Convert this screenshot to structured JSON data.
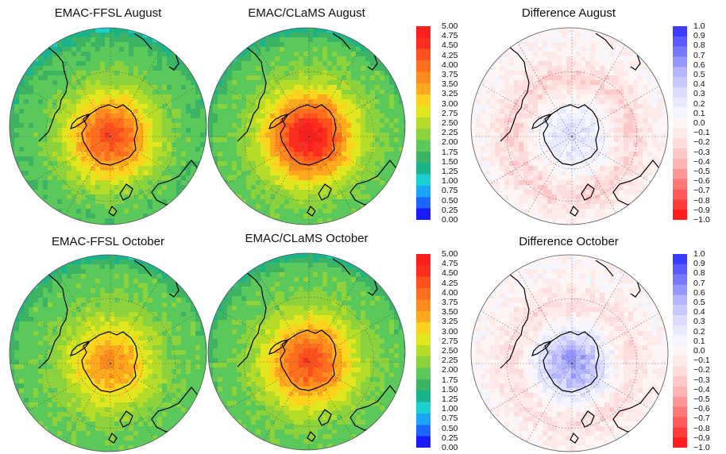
{
  "panels": [
    {
      "title": "EMAC-FFSL August",
      "kind": "ozone",
      "peak": 4.3,
      "rim": 1.8,
      "month": "aug"
    },
    {
      "title": "EMAC/CLaMS August",
      "kind": "ozone",
      "peak": 4.9,
      "rim": 1.9,
      "month": "aug"
    },
    {
      "title": "Difference August",
      "kind": "diff",
      "center": 0.25,
      "ring": -0.25,
      "month": "aug"
    },
    {
      "title": "EMAC-FFSL October",
      "kind": "ozone",
      "peak": 3.6,
      "rim": 1.9,
      "month": "oct"
    },
    {
      "title": "EMAC/CLaMS October",
      "kind": "ozone",
      "peak": 4.3,
      "rim": 1.9,
      "month": "oct"
    },
    {
      "title": "Difference October",
      "kind": "diff",
      "center": 0.6,
      "ring": -0.2,
      "month": "oct"
    }
  ],
  "colorbars": {
    "ozone": {
      "ticks": [
        "5.00",
        "4.75",
        "4.50",
        "4.25",
        "4.00",
        "3.75",
        "3.50",
        "3.25",
        "3.00",
        "2.75",
        "2.50",
        "2.25",
        "2.00",
        "1.75",
        "1.50",
        "1.25",
        "1.00",
        "0.75",
        "0.50",
        "0.25",
        "0.00"
      ],
      "min": 0,
      "max": 5,
      "colors": [
        "#1a1aff",
        "#1a66ff",
        "#1aa3ff",
        "#1ad0d0",
        "#1ab48c",
        "#3cb464",
        "#5ac85a",
        "#8cd23c",
        "#b4dc28",
        "#e1e61e",
        "#ffd21e",
        "#ffaa1e",
        "#ff8c1e",
        "#ff6e1e",
        "#ff501e",
        "#ff2d1e",
        "#ff1e1e"
      ]
    },
    "diff": {
      "ticks": [
        "1.0",
        "0.9",
        "0.8",
        "0.7",
        "0.6",
        "0.5",
        "0.4",
        "0.3",
        "0.2",
        "0.1",
        "0.0",
        "−0.1",
        "−0.2",
        "−0.3",
        "−0.4",
        "−0.5",
        "−0.6",
        "−0.7",
        "−0.8",
        "−0.9",
        "−1.0"
      ],
      "min": -1,
      "max": 1,
      "colors": [
        "#ff1e1e",
        "#ff3c3c",
        "#ff5a5a",
        "#ff7878",
        "#ff9696",
        "#ffb4b4",
        "#ffc8c8",
        "#ffdcdc",
        "#ffeaea",
        "#fff5f5",
        "#f5f5ff",
        "#eaeaff",
        "#dcdcff",
        "#c8c8ff",
        "#b4b4ff",
        "#9696ff",
        "#7878ff",
        "#5a5aff",
        "#3c3cff"
      ]
    }
  }
}
